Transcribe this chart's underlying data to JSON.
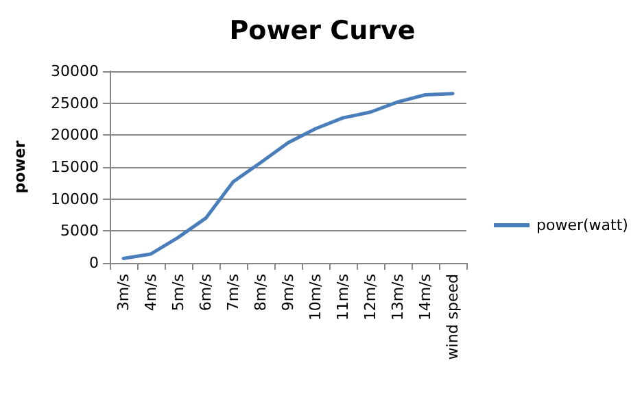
{
  "chart_data": {
    "type": "line",
    "title": "Power Curve",
    "ylabel": "power",
    "categories": [
      "3m/s",
      "4m/s",
      "5m/s",
      "6m/s",
      "7m/s",
      "8m/s",
      "9m/s",
      "10m/s",
      "11m/s",
      "12m/s",
      "13m/s",
      "14m/s",
      "wind speed"
    ],
    "series": [
      {
        "name": "power(watt)",
        "color": "#4a7ebb",
        "values": [
          700,
          1400,
          4000,
          7000,
          12700,
          15700,
          18800,
          21000,
          22700,
          23600,
          25200,
          26300,
          26500
        ]
      }
    ],
    "ylim": [
      0,
      30000
    ],
    "yticks": [
      0,
      5000,
      10000,
      15000,
      20000,
      25000,
      30000
    ],
    "grid": "y",
    "legend": "right",
    "marker": "none",
    "line_style": "solid"
  }
}
